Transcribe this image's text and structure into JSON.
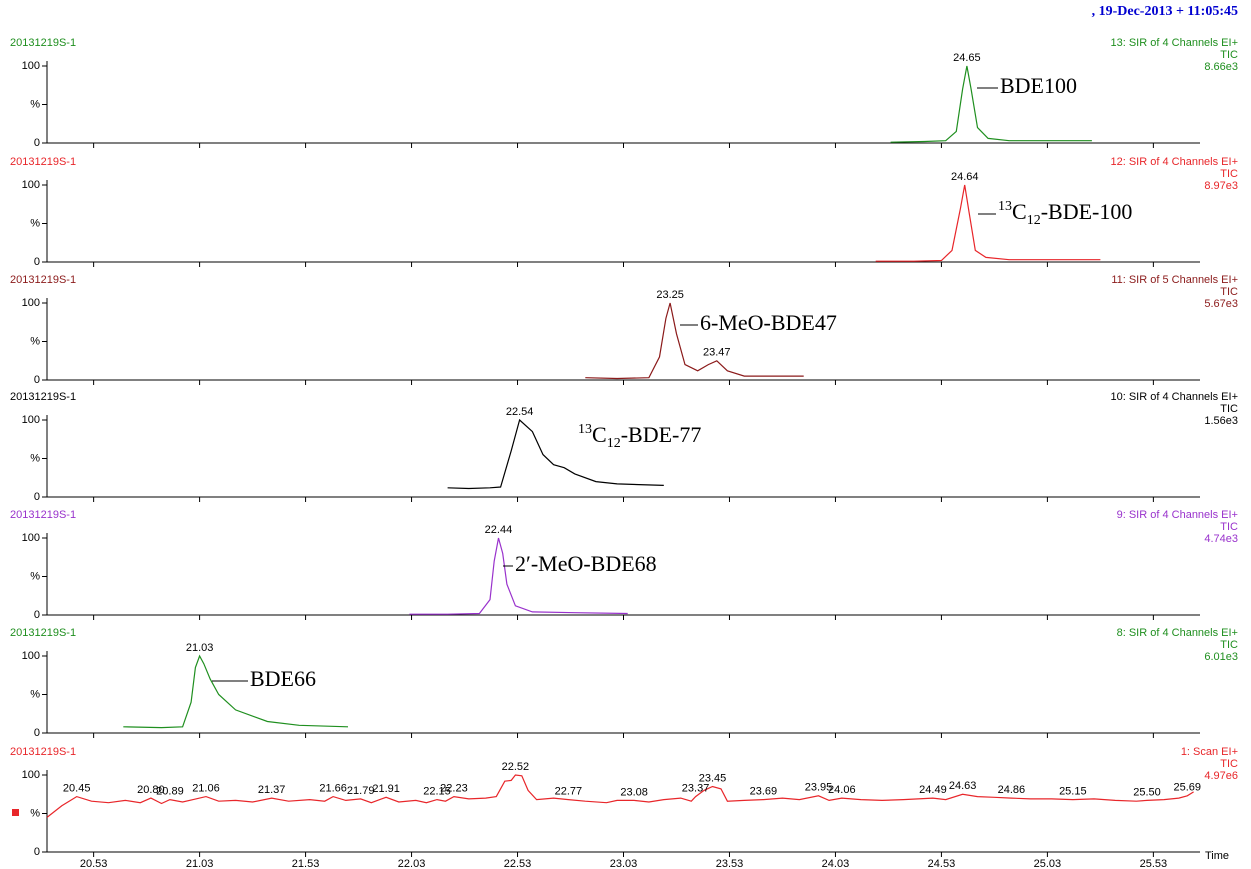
{
  "header": {
    "timestamp": ", 19-Dec-2013 + 11:05:45"
  },
  "chart_data": [
    {
      "type": "line",
      "title": "20131219S-1",
      "channel": "13: SIR of 4 Channels EI+",
      "trace": "TIC",
      "intensity": "8.66e3",
      "color": "#1f8f1f",
      "xlim": [
        20.31,
        25.75
      ],
      "ylim": [
        0,
        100
      ],
      "yticks": [
        0,
        {
          "value": 50,
          "label": "%"
        },
        100
      ],
      "x": [
        24.29,
        24.45,
        24.55,
        24.6,
        24.63,
        24.65,
        24.67,
        24.7,
        24.75,
        24.85,
        25.0,
        25.24
      ],
      "values": [
        1,
        2,
        3,
        15,
        70,
        100,
        70,
        20,
        6,
        3,
        3,
        3
      ],
      "peaks": {
        "x": [
          24.65
        ],
        "y": [
          100
        ],
        "value_labels": [
          "24.65"
        ]
      },
      "annotation": [
        {
          "text": "BDE100"
        }
      ]
    },
    {
      "type": "line",
      "title": "20131219S-1",
      "channel": "12: SIR of 4 Channels EI+",
      "trace": "TIC",
      "intensity": "8.97e3",
      "color": "#e8262a",
      "xlim": [
        20.31,
        25.75
      ],
      "ylim": [
        0,
        100
      ],
      "yticks": [
        0,
        {
          "value": 50,
          "label": "%"
        },
        100
      ],
      "x": [
        24.22,
        24.4,
        24.53,
        24.58,
        24.62,
        24.64,
        24.66,
        24.69,
        24.74,
        24.85,
        25.0,
        25.28
      ],
      "values": [
        1,
        1,
        2,
        15,
        70,
        100,
        65,
        15,
        6,
        3,
        3,
        3
      ],
      "peaks": {
        "x": [
          24.64
        ],
        "y": [
          100
        ],
        "value_labels": [
          "24.64"
        ]
      },
      "annotation": [
        {
          "sup": "13"
        },
        {
          "text": "C"
        },
        {
          "sub": "12"
        },
        {
          "text": "-BDE-100"
        }
      ]
    },
    {
      "type": "line",
      "title": "20131219S-1",
      "channel": "11: SIR of 5 Channels EI+",
      "trace": "TIC",
      "intensity": "5.67e3",
      "color": "#8b1a1a",
      "xlim": [
        20.31,
        25.75
      ],
      "ylim": [
        0,
        100
      ],
      "yticks": [
        0,
        {
          "value": 50,
          "label": "%"
        },
        100
      ],
      "x": [
        22.85,
        23.0,
        23.15,
        23.2,
        23.23,
        23.25,
        23.28,
        23.32,
        23.38,
        23.43,
        23.47,
        23.52,
        23.6,
        23.88
      ],
      "values": [
        3,
        2,
        3,
        30,
        80,
        100,
        60,
        20,
        12,
        20,
        25,
        12,
        5,
        5
      ],
      "peaks": {
        "x": [
          23.25,
          23.47
        ],
        "y": [
          100,
          25
        ],
        "value_labels": [
          "23.25",
          "23.47"
        ]
      },
      "annotation": [
        {
          "text": "6-MeO-BDE47"
        }
      ]
    },
    {
      "type": "line",
      "title": "20131219S-1",
      "channel": "10: SIR of 4 Channels EI+",
      "trace": "TIC",
      "intensity": "1.56e3",
      "color": "#000000",
      "xlim": [
        20.31,
        25.75
      ],
      "ylim": [
        0,
        100
      ],
      "yticks": [
        0,
        {
          "value": 50,
          "label": "%"
        },
        100
      ],
      "x": [
        22.2,
        22.3,
        22.4,
        22.45,
        22.5,
        22.54,
        22.6,
        22.65,
        22.7,
        22.75,
        22.8,
        22.9,
        23.0,
        23.22
      ],
      "values": [
        12,
        11,
        12,
        13,
        60,
        100,
        85,
        55,
        42,
        38,
        30,
        20,
        17,
        15
      ],
      "peaks": {
        "x": [
          22.54
        ],
        "y": [
          100
        ],
        "value_labels": [
          "22.54"
        ]
      },
      "annotation": [
        {
          "sup": "13"
        },
        {
          "text": "C"
        },
        {
          "sub": "12"
        },
        {
          "text": "-BDE-77"
        }
      ]
    },
    {
      "type": "line",
      "title": "20131219S-1",
      "channel": "9: SIR of 4 Channels EI+",
      "trace": "TIC",
      "intensity": "4.74e3",
      "color": "#9932cc",
      "xlim": [
        20.31,
        25.75
      ],
      "ylim": [
        0,
        100
      ],
      "yticks": [
        0,
        {
          "value": 50,
          "label": "%"
        },
        100
      ],
      "x": [
        22.02,
        22.2,
        22.35,
        22.4,
        22.42,
        22.44,
        22.46,
        22.48,
        22.52,
        22.6,
        22.8,
        23.05
      ],
      "values": [
        1,
        1,
        2,
        20,
        70,
        100,
        80,
        40,
        12,
        4,
        3,
        2
      ],
      "peaks": {
        "x": [
          22.44
        ],
        "y": [
          100
        ],
        "value_labels": [
          "22.44"
        ]
      },
      "annotation": [
        {
          "text": "2′-MeO-BDE68"
        }
      ]
    },
    {
      "type": "line",
      "title": "20131219S-1",
      "channel": "8: SIR of 4 Channels EI+",
      "trace": "TIC",
      "intensity": "6.01e3",
      "color": "#1f8f1f",
      "xlim": [
        20.31,
        25.75
      ],
      "ylim": [
        0,
        100
      ],
      "yticks": [
        0,
        {
          "value": 50,
          "label": "%"
        },
        100
      ],
      "x": [
        20.67,
        20.85,
        20.95,
        20.99,
        21.01,
        21.03,
        21.05,
        21.08,
        21.12,
        21.2,
        21.35,
        21.5,
        21.73
      ],
      "values": [
        8,
        7,
        8,
        40,
        85,
        100,
        90,
        70,
        50,
        30,
        15,
        10,
        8
      ],
      "peaks": {
        "x": [
          21.03
        ],
        "y": [
          100
        ],
        "value_labels": [
          "21.03"
        ]
      },
      "annotation": [
        {
          "text": "BDE66"
        }
      ]
    },
    {
      "type": "line",
      "title": "20131219S-1",
      "channel": "1: Scan EI+",
      "trace": "TIC",
      "intensity": "4.97e6",
      "color": "#e8262a",
      "xlim": [
        20.31,
        25.75
      ],
      "ylim": [
        0,
        100
      ],
      "yticks": [
        0,
        {
          "value": 50,
          "label": "%"
        },
        100
      ],
      "xticks": [
        20.53,
        21.03,
        21.53,
        22.03,
        22.53,
        23.03,
        23.53,
        24.03,
        24.53,
        25.03,
        25.53
      ],
      "xlabel": "Time",
      "x": [
        20.31,
        20.38,
        20.45,
        20.52,
        20.6,
        20.68,
        20.75,
        20.8,
        20.85,
        20.89,
        20.95,
        21.0,
        21.06,
        21.12,
        21.2,
        21.28,
        21.37,
        21.45,
        21.55,
        21.62,
        21.66,
        21.72,
        21.79,
        21.84,
        21.91,
        21.97,
        22.05,
        22.1,
        22.15,
        22.19,
        22.23,
        22.3,
        22.38,
        22.43,
        22.47,
        22.5,
        22.52,
        22.55,
        22.58,
        22.62,
        22.7,
        22.77,
        22.85,
        22.95,
        23.0,
        23.08,
        23.15,
        23.22,
        23.3,
        23.35,
        23.37,
        23.41,
        23.45,
        23.49,
        23.52,
        23.6,
        23.69,
        23.78,
        23.86,
        23.95,
        24.0,
        24.06,
        24.15,
        24.25,
        24.35,
        24.42,
        24.49,
        24.55,
        24.63,
        24.7,
        24.78,
        24.86,
        24.95,
        25.05,
        25.15,
        25.25,
        25.35,
        25.45,
        25.5,
        25.58,
        25.65,
        25.69,
        25.72
      ],
      "values": [
        45,
        60,
        72,
        66,
        64,
        67,
        64,
        70,
        63,
        68,
        65,
        68,
        72,
        66,
        67,
        65,
        70,
        66,
        68,
        66,
        72,
        67,
        69,
        64,
        71,
        65,
        67,
        64,
        68,
        66,
        72,
        69,
        70,
        72,
        92,
        93,
        100,
        99,
        80,
        68,
        70,
        68,
        66,
        64,
        67,
        67,
        65,
        68,
        70,
        66,
        72,
        80,
        85,
        82,
        66,
        67,
        68,
        70,
        68,
        73,
        67,
        70,
        68,
        67,
        68,
        69,
        70,
        68,
        75,
        72,
        71,
        70,
        69,
        69,
        68,
        69,
        67,
        66,
        67,
        68,
        70,
        73,
        78
      ],
      "peaks": {
        "x": [
          20.45,
          20.8,
          20.89,
          21.06,
          21.37,
          21.66,
          21.79,
          21.91,
          22.15,
          22.23,
          22.52,
          22.77,
          23.08,
          23.37,
          23.45,
          23.69,
          23.95,
          24.06,
          24.49,
          24.63,
          24.86,
          25.15,
          25.5,
          25.69
        ],
        "y": [
          72,
          70,
          68,
          72,
          70,
          72,
          69,
          71,
          68,
          72,
          100,
          68,
          67,
          72,
          85,
          68,
          73,
          70,
          70,
          75,
          70,
          68,
          67,
          73
        ],
        "value_labels": [
          "20.45",
          "20.80",
          "20.89",
          "21.06",
          "21.37",
          "21.66",
          "21.79",
          "21.91",
          "22.15",
          "22.23",
          "22.52",
          "22.77",
          "23.08",
          "23.37",
          "23.45",
          "23.69",
          "23.95",
          "24.06",
          "24.49",
          "24.63",
          "24.86",
          "25.15",
          "25.50",
          "25.69"
        ]
      }
    }
  ]
}
